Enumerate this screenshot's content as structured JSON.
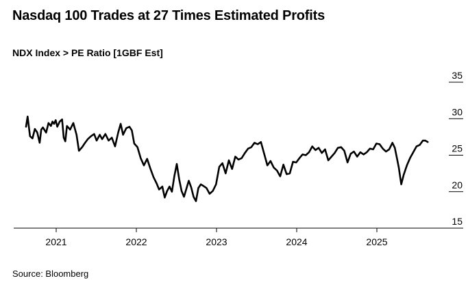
{
  "title": "Nasdaq 100 Trades at 27 Times Estimated Profits",
  "subtitle": "NDX Index > PE Ratio [1GBF Est]",
  "source": "Source: Bloomberg",
  "chart_data": {
    "type": "line",
    "title": "Nasdaq 100 Trades at 27 Times Estimated Profits",
    "subtitle": "NDX Index > PE Ratio [1GBF Est]",
    "xlabel": "",
    "ylabel": "",
    "ylim": [
      15,
      35
    ],
    "yticks": [
      15,
      20,
      25,
      30,
      35
    ],
    "xticks": [
      "2021",
      "2022",
      "2023",
      "2024",
      "2025"
    ],
    "x_range": [
      2020.65,
      2025.7
    ],
    "grid": false,
    "y_axis_position": "right",
    "line_color": "#000000",
    "series": [
      {
        "x": [
          2020.65,
          2020.67,
          2020.7,
          2020.73,
          2020.76,
          2020.79,
          2020.82,
          2020.84,
          2020.86,
          2020.9,
          2020.93,
          2020.96,
          2020.98,
          2021.0,
          2021.02,
          2021.04,
          2021.07,
          2021.1,
          2021.12,
          2021.14,
          2021.16,
          2021.2,
          2021.24,
          2021.28,
          2021.31,
          2021.35,
          2021.38,
          2021.42,
          2021.46,
          2021.5,
          2021.53,
          2021.57,
          2021.6,
          2021.64,
          2021.68,
          2021.72,
          2021.76,
          2021.8,
          2021.83,
          2021.86,
          2021.9,
          2021.94,
          2021.97,
          2022.0,
          2022.04,
          2022.08,
          2022.12,
          2022.16,
          2022.2,
          2022.24,
          2022.28,
          2022.31,
          2022.35,
          2022.38,
          2022.41,
          2022.44,
          2022.47,
          2022.5,
          2022.53,
          2022.56,
          2022.59,
          2022.62,
          2022.65,
          2022.68,
          2022.71,
          2022.74,
          2022.77,
          2022.8,
          2022.83,
          2022.86,
          2022.9,
          2022.94,
          2022.98,
          2023.02,
          2023.06,
          2023.1,
          2023.14,
          2023.18,
          2023.22,
          2023.26,
          2023.3,
          2023.34,
          2023.38,
          2023.42,
          2023.46,
          2023.5,
          2023.54,
          2023.58,
          2023.62,
          2023.66,
          2023.7,
          2023.74,
          2023.78,
          2023.82,
          2023.86,
          2023.9,
          2023.94,
          2023.98,
          2024.02,
          2024.06,
          2024.1,
          2024.14,
          2024.18,
          2024.22,
          2024.26,
          2024.3,
          2024.34,
          2024.38,
          2024.42,
          2024.46,
          2024.5,
          2024.54,
          2024.58,
          2024.62,
          2024.66,
          2024.7,
          2024.74,
          2024.78,
          2024.82,
          2024.86,
          2024.9,
          2024.94,
          2024.98,
          2025.02,
          2025.06,
          2025.1,
          2025.14,
          2025.18,
          2025.22,
          2025.25,
          2025.28,
          2025.3,
          2025.33,
          2025.36,
          2025.4,
          2025.44,
          2025.48,
          2025.52,
          2025.56,
          2025.6,
          2025.63,
          2025.66
        ],
        "values": [
          28.9,
          30.3,
          27.6,
          27.3,
          28.6,
          28.1,
          26.7,
          28.5,
          28.8,
          28.1,
          29.4,
          29.0,
          29.6,
          29.3,
          29.8,
          28.9,
          29.6,
          29.9,
          27.4,
          26.9,
          29.0,
          28.5,
          29.4,
          27.8,
          25.6,
          26.1,
          26.6,
          27.2,
          27.6,
          27.9,
          27.0,
          27.8,
          27.2,
          27.9,
          27.0,
          27.4,
          26.2,
          28.1,
          29.3,
          27.8,
          28.7,
          28.9,
          28.4,
          26.6,
          26.1,
          24.6,
          23.6,
          24.5,
          23.2,
          22.0,
          21.1,
          20.3,
          20.7,
          19.2,
          20.1,
          20.7,
          20.0,
          22.1,
          23.8,
          21.7,
          20.1,
          19.3,
          20.4,
          21.5,
          20.6,
          19.3,
          18.7,
          20.5,
          21.0,
          20.8,
          20.5,
          19.7,
          20.1,
          21.0,
          23.4,
          23.9,
          22.5,
          24.3,
          23.1,
          24.8,
          24.4,
          24.6,
          25.3,
          25.9,
          26.1,
          26.7,
          26.5,
          26.8,
          25.2,
          23.6,
          24.2,
          23.3,
          22.9,
          22.1,
          23.7,
          22.4,
          22.5,
          24.1,
          24.0,
          24.6,
          25.1,
          25.0,
          25.4,
          26.2,
          25.7,
          26.0,
          25.3,
          25.8,
          24.3,
          24.8,
          25.3,
          26.0,
          26.1,
          25.6,
          24.0,
          25.2,
          25.5,
          24.8,
          25.4,
          25.1,
          25.4,
          25.9,
          25.8,
          26.6,
          26.5,
          25.9,
          25.5,
          25.8,
          26.7,
          26.0,
          24.4,
          23.3,
          21.0,
          22.3,
          23.6,
          24.6,
          25.4,
          26.2,
          26.4,
          27.0,
          27.0,
          26.8
        ]
      }
    ]
  }
}
